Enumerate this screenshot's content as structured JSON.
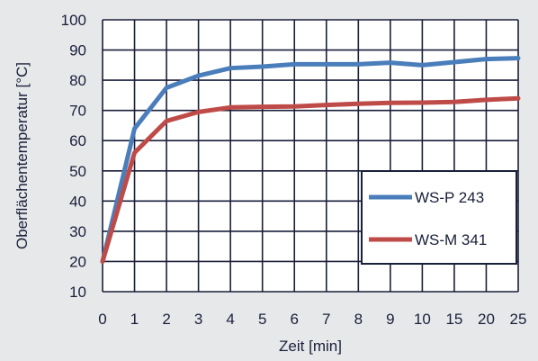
{
  "chart_data": {
    "type": "line",
    "title": "",
    "xlabel": "Zeit  [min]",
    "ylabel": "Oberflächentemperatur  [°C]",
    "ylim": [
      10,
      100
    ],
    "y_ticks": [
      "10",
      "20",
      "30",
      "40",
      "50",
      "60",
      "70",
      "80",
      "90",
      "100"
    ],
    "categories": [
      "0",
      "1",
      "2",
      "3",
      "4",
      "5",
      "6",
      "7",
      "8",
      "9",
      "10",
      "15",
      "20",
      "25"
    ],
    "series": [
      {
        "name": "WS-P 243",
        "color": "#4a7ebb",
        "values": [
          20,
          64,
          77.5,
          81.5,
          84,
          84.5,
          85.3,
          85.3,
          85.3,
          85.8,
          85,
          86,
          87,
          87.3
        ]
      },
      {
        "name": "WS-M 341",
        "color": "#be4b48",
        "values": [
          20,
          56,
          66.5,
          69.5,
          71,
          71.2,
          71.3,
          71.8,
          72.2,
          72.5,
          72.6,
          72.8,
          73.5,
          74
        ]
      }
    ],
    "grid": true,
    "legend_position": "lower-right"
  }
}
